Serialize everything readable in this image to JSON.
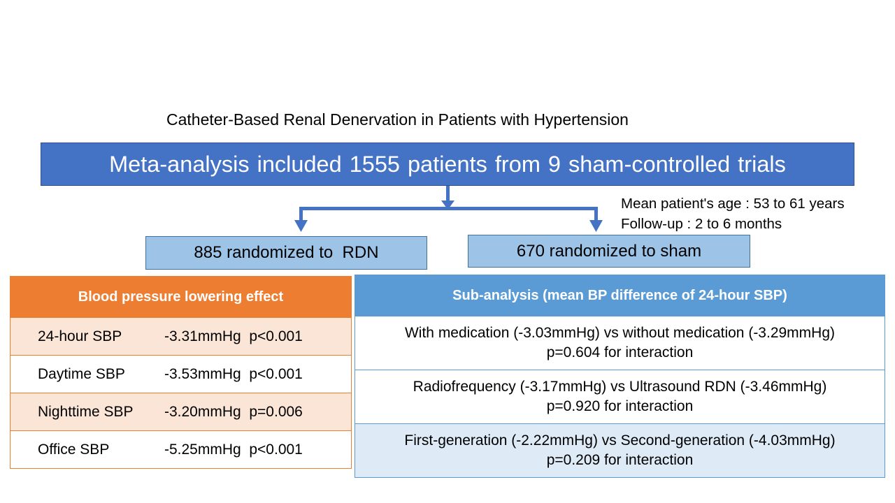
{
  "title": "Catheter-Based Renal Denervation in Patients with Hypertension",
  "meta_analysis": "Meta-analysis included 1555 patients from 9 sham-controlled trials",
  "info": {
    "age": "Mean patient's age : 53 to 61 years",
    "follow_up": "Follow-up : 2 to 6 months"
  },
  "groups": {
    "rdn": "885 randomized to  RDN",
    "sham": "670 randomized to sham"
  },
  "bp_table": {
    "header": "Blood pressure lowering effect",
    "rows": [
      {
        "label": "24-hour SBP",
        "value": "-3.31mmHg  p<0.001"
      },
      {
        "label": "Daytime SBP",
        "value": "-3.53mmHg  p<0.001"
      },
      {
        "label": "Nighttime SBP",
        "value": "-3.20mmHg  p=0.006"
      },
      {
        "label": "Office SBP",
        "value": "-5.25mmHg  p<0.001"
      }
    ]
  },
  "sub_table": {
    "header": "Sub-analysis (mean BP difference of 24-hour SBP)",
    "rows": [
      {
        "line1": "With medication (-3.03mmHg) vs without medication (-3.29mmHg)",
        "line2": "p=0.604 for interaction"
      },
      {
        "line1": "Radiofrequency (-3.17mmHg) vs Ultrasound RDN (-3.46mmHg)",
        "line2": "p=0.920 for interaction"
      },
      {
        "line1": "First-generation (-2.22mmHg) vs Second-generation (-4.03mmHg)",
        "line2": "p=0.209 for interaction"
      }
    ]
  },
  "colors": {
    "primary": "#4472c4",
    "light_blue": "#9dc3e6",
    "orange": "#ed7d31",
    "orange_light": "#fbe5d6",
    "sub_blue": "#5b9bd5",
    "sub_light": "#deebf7"
  }
}
